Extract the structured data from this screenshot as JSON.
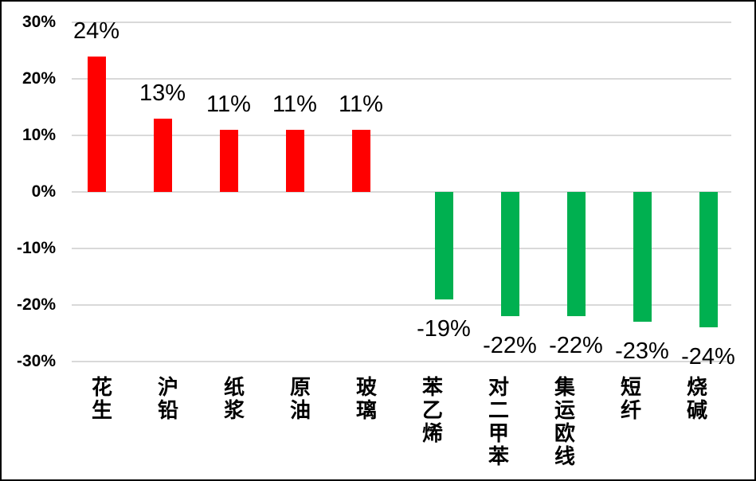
{
  "chart_data": {
    "type": "bar",
    "title": "",
    "categories": [
      "花生",
      "沪铅",
      "纸浆",
      "原油",
      "玻璃",
      "苯乙烯",
      "对二甲苯",
      "集运欧线",
      "短纤",
      "烧碱"
    ],
    "values": [
      24,
      13,
      11,
      11,
      11,
      -19,
      -22,
      -22,
      -23,
      -24
    ],
    "data_labels": [
      "24%",
      "13%",
      "11%",
      "11%",
      "11%",
      "-19%",
      "-22%",
      "-22%",
      "-23%",
      "-24%"
    ],
    "y_axis": {
      "tick_labels": [
        "30%",
        "20%",
        "10%",
        "0%",
        "-10%",
        "-20%",
        "-30%"
      ],
      "tick_values": [
        30,
        20,
        10,
        0,
        -10,
        -20,
        -30
      ],
      "ylim": [
        -30,
        30
      ]
    },
    "xlabel": "",
    "ylabel": "",
    "grid": true,
    "legend": "none",
    "colors": {
      "positive_bar": "#FF0000",
      "negative_bar": "#00B050",
      "gridline": "#D9D9D9",
      "text": "#000000",
      "background": "#FFFFFF",
      "frame_border": "#000000"
    }
  }
}
